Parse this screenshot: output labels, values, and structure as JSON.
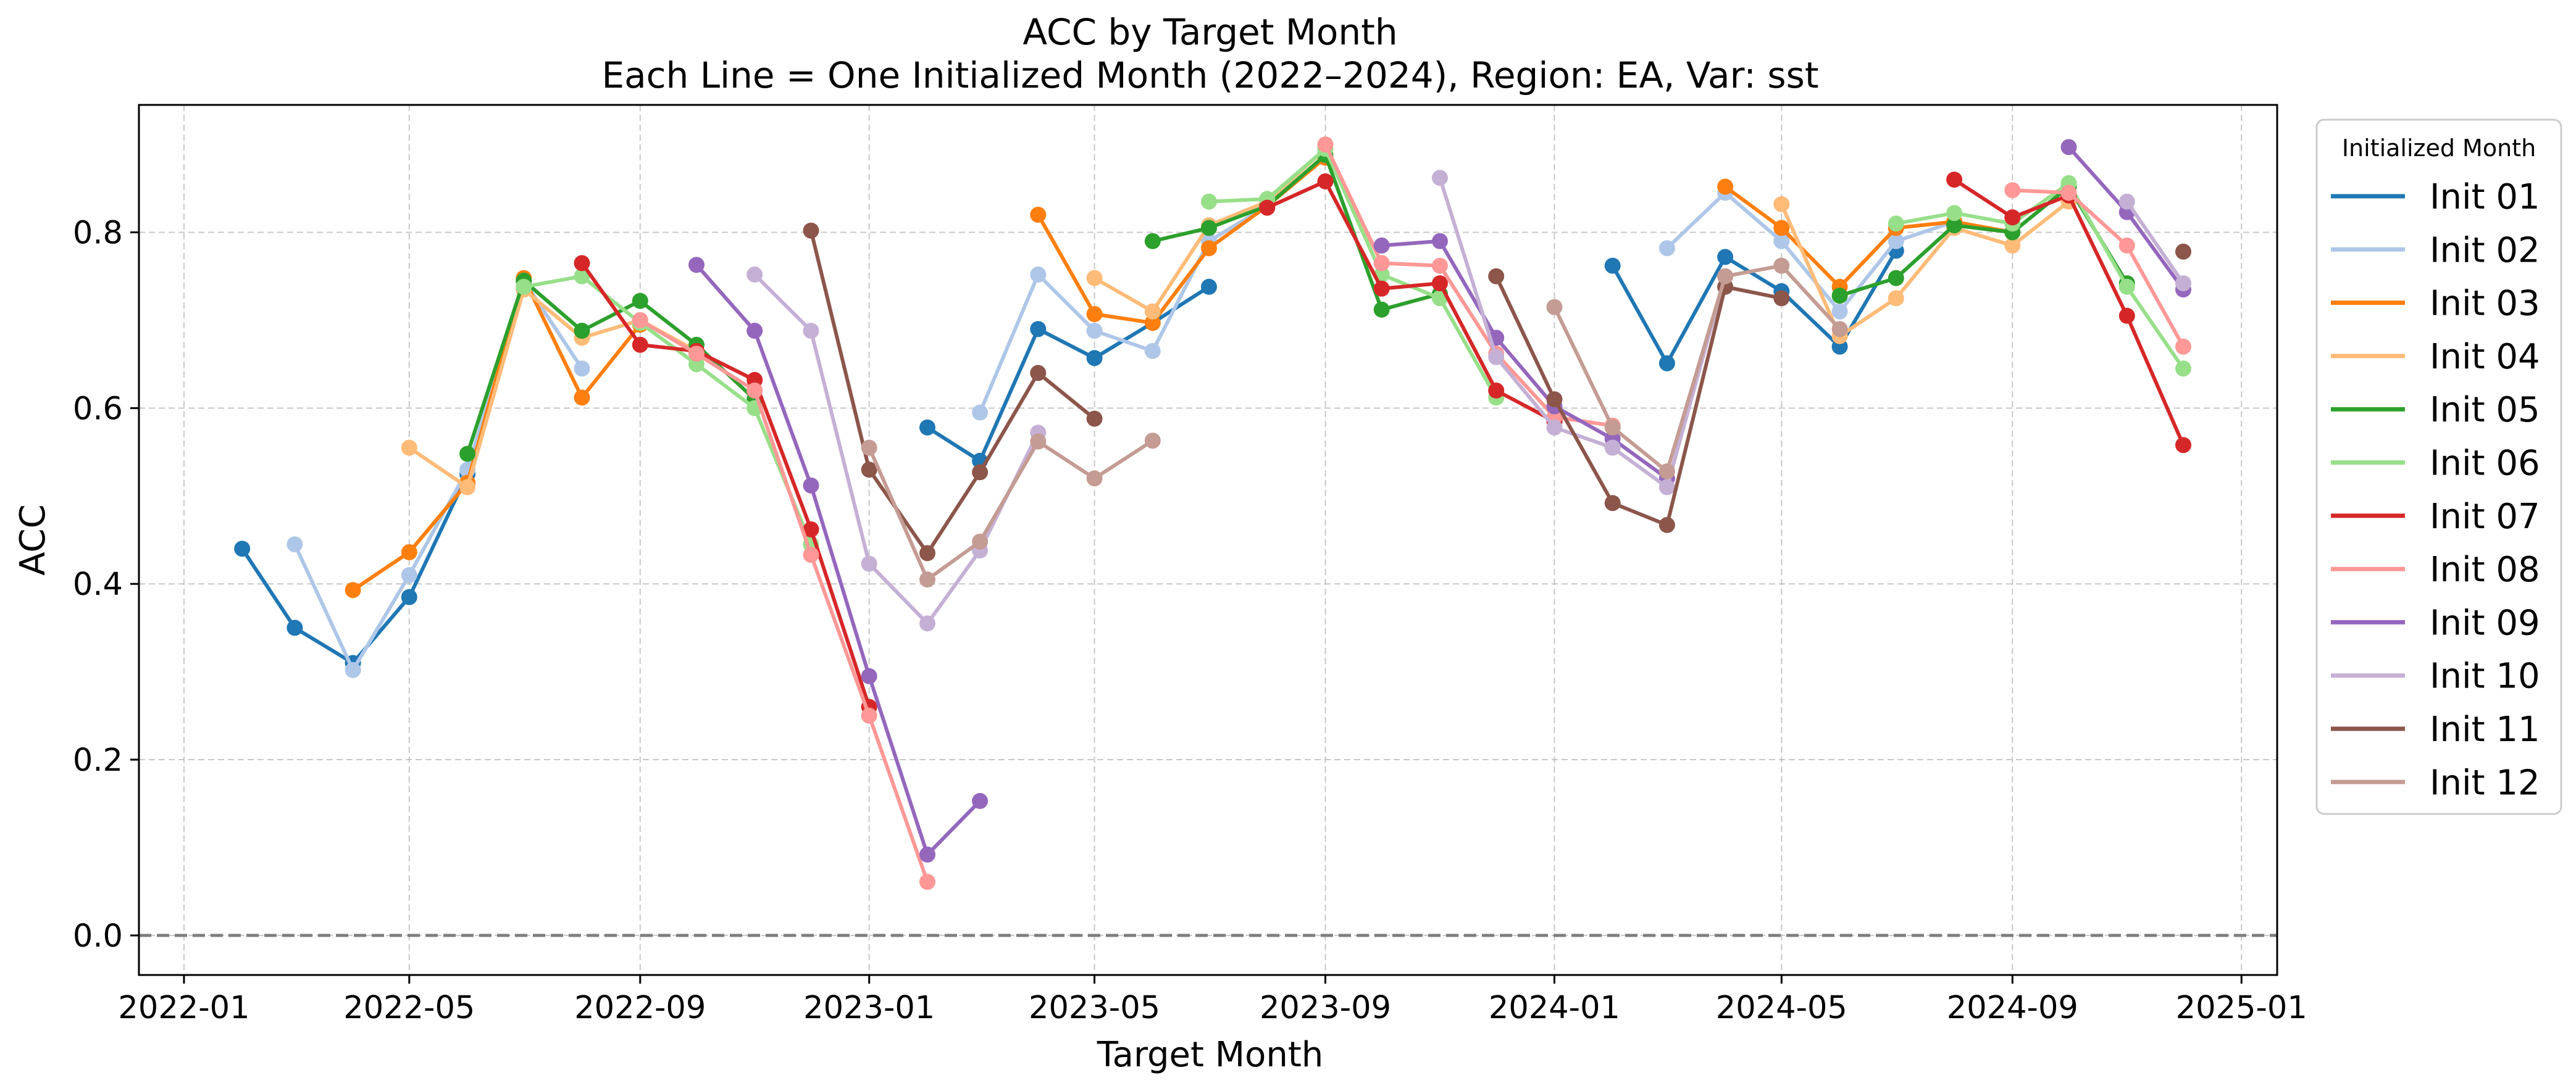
{
  "chart_data": {
    "type": "line",
    "title": "ACC by Target Month",
    "subtitle": "Each Line = One Initialized Month (2022–2024), Region: EA, Var: sst",
    "xlabel": "Target Month",
    "ylabel": "ACC",
    "xlim": [
      "2021-12-08",
      "2025-01-20"
    ],
    "ylim": [
      -0.045,
      0.945
    ],
    "x_ticks": [
      "2022-01",
      "2022-05",
      "2022-09",
      "2023-01",
      "2023-05",
      "2023-09",
      "2024-01",
      "2024-05",
      "2024-09",
      "2025-01"
    ],
    "y_ticks": [
      0.0,
      0.2,
      0.4,
      0.6,
      0.8
    ],
    "y_tick_labels": [
      "0.0",
      "0.2",
      "0.4",
      "0.6",
      "0.8"
    ],
    "grid": true,
    "reference_line": {
      "y": 0.0,
      "style": "dashed",
      "color": "#7f7f7f"
    },
    "legend": {
      "title": "Initialized Month",
      "placement": "outside-right"
    },
    "series": [
      {
        "name": "Init 01",
        "color": "#1f77b4",
        "segments": [
          {
            "x": [
              "2022-02",
              "2022-03",
              "2022-04",
              "2022-05",
              "2022-06",
              "2022-07"
            ],
            "y": [
              0.44,
              0.35,
              0.31,
              0.385,
              0.525,
              0.735
            ]
          },
          {
            "x": [
              "2023-02",
              "2023-03",
              "2023-04",
              "2023-05",
              "2023-06",
              "2023-07"
            ],
            "y": [
              0.578,
              0.54,
              0.69,
              0.657,
              0.697,
              0.738
            ]
          },
          {
            "x": [
              "2024-02",
              "2024-03",
              "2024-04",
              "2024-05",
              "2024-06",
              "2024-07"
            ],
            "y": [
              0.762,
              0.651,
              0.772,
              0.733,
              0.67,
              0.779
            ]
          }
        ]
      },
      {
        "name": "Init 02",
        "color": "#aec7e8",
        "segments": [
          {
            "x": [
              "2022-03",
              "2022-04",
              "2022-05",
              "2022-06",
              "2022-07",
              "2022-08"
            ],
            "y": [
              0.445,
              0.302,
              0.41,
              0.53,
              0.745,
              0.645
            ]
          },
          {
            "x": [
              "2023-03",
              "2023-04",
              "2023-05",
              "2023-06",
              "2023-07",
              "2023-08"
            ],
            "y": [
              0.595,
              0.752,
              0.688,
              0.665,
              0.79,
              0.83
            ]
          },
          {
            "x": [
              "2024-03",
              "2024-04",
              "2024-05",
              "2024-06",
              "2024-07",
              "2024-08"
            ],
            "y": [
              0.782,
              0.845,
              0.79,
              0.71,
              0.79,
              0.812
            ]
          }
        ]
      },
      {
        "name": "Init 03",
        "color": "#ff7f0e",
        "segments": [
          {
            "x": [
              "2022-04",
              "2022-05",
              "2022-06",
              "2022-07",
              "2022-08",
              "2022-09"
            ],
            "y": [
              0.393,
              0.436,
              0.515,
              0.748,
              0.612,
              0.695
            ]
          },
          {
            "x": [
              "2023-04",
              "2023-05",
              "2023-06",
              "2023-07",
              "2023-08",
              "2023-09"
            ],
            "y": [
              0.82,
              0.707,
              0.697,
              0.782,
              0.83,
              0.885
            ]
          },
          {
            "x": [
              "2024-04",
              "2024-05",
              "2024-06",
              "2024-07",
              "2024-08",
              "2024-09"
            ],
            "y": [
              0.852,
              0.805,
              0.738,
              0.805,
              0.812,
              0.8
            ]
          }
        ]
      },
      {
        "name": "Init 04",
        "color": "#ffbb78",
        "segments": [
          {
            "x": [
              "2022-05",
              "2022-06",
              "2022-07",
              "2022-08",
              "2022-09",
              "2022-10"
            ],
            "y": [
              0.555,
              0.51,
              0.735,
              0.68,
              0.7,
              0.665
            ]
          },
          {
            "x": [
              "2023-05",
              "2023-06",
              "2023-07",
              "2023-08",
              "2023-09",
              "2023-10"
            ],
            "y": [
              0.748,
              0.71,
              0.808,
              0.835,
              0.895,
              0.765
            ]
          },
          {
            "x": [
              "2024-05",
              "2024-06",
              "2024-07",
              "2024-08",
              "2024-09",
              "2024-10"
            ],
            "y": [
              0.832,
              0.682,
              0.725,
              0.805,
              0.785,
              0.835
            ]
          }
        ]
      },
      {
        "name": "Init 05",
        "color": "#2ca02c",
        "segments": [
          {
            "x": [
              "2022-06",
              "2022-07",
              "2022-08",
              "2022-09",
              "2022-10",
              "2022-11"
            ],
            "y": [
              0.548,
              0.745,
              0.688,
              0.722,
              0.672,
              0.61
            ]
          },
          {
            "x": [
              "2023-06",
              "2023-07",
              "2023-08",
              "2023-09",
              "2023-10",
              "2023-11"
            ],
            "y": [
              0.79,
              0.805,
              0.83,
              0.888,
              0.712,
              0.73
            ]
          },
          {
            "x": [
              "2024-06",
              "2024-07",
              "2024-08",
              "2024-09",
              "2024-10",
              "2024-11"
            ],
            "y": [
              0.728,
              0.748,
              0.808,
              0.8,
              0.852,
              0.742
            ]
          }
        ]
      },
      {
        "name": "Init 06",
        "color": "#98df8a",
        "segments": [
          {
            "x": [
              "2022-07",
              "2022-08",
              "2022-09",
              "2022-10",
              "2022-11",
              "2022-12"
            ],
            "y": [
              0.738,
              0.75,
              0.697,
              0.65,
              0.6,
              0.445
            ]
          },
          {
            "x": [
              "2023-07",
              "2023-08",
              "2023-09",
              "2023-10",
              "2023-11",
              "2023-12"
            ],
            "y": [
              0.835,
              0.838,
              0.895,
              0.752,
              0.725,
              0.612
            ]
          },
          {
            "x": [
              "2024-07",
              "2024-08",
              "2024-09",
              "2024-10",
              "2024-11",
              "2024-12"
            ],
            "y": [
              0.81,
              0.822,
              0.81,
              0.856,
              0.738,
              0.645
            ]
          }
        ]
      },
      {
        "name": "Init 07",
        "color": "#d62728",
        "segments": [
          {
            "x": [
              "2022-08",
              "2022-09",
              "2022-10",
              "2022-11",
              "2022-12",
              "2023-01"
            ],
            "y": [
              0.765,
              0.672,
              0.665,
              0.632,
              0.462,
              0.26
            ]
          },
          {
            "x": [
              "2023-08",
              "2023-09",
              "2023-10",
              "2023-11",
              "2023-12",
              "2024-01"
            ],
            "y": [
              0.828,
              0.858,
              0.736,
              0.742,
              0.62,
              0.585
            ]
          },
          {
            "x": [
              "2024-08",
              "2024-09",
              "2024-10",
              "2024-11",
              "2024-12"
            ],
            "y": [
              0.86,
              0.817,
              0.842,
              0.705,
              0.558
            ]
          }
        ]
      },
      {
        "name": "Init 08",
        "color": "#ff9896",
        "segments": [
          {
            "x": [
              "2022-09",
              "2022-10",
              "2022-11",
              "2022-12",
              "2023-01",
              "2023-02"
            ],
            "y": [
              0.7,
              0.662,
              0.62,
              0.433,
              0.25,
              0.061
            ]
          },
          {
            "x": [
              "2023-09",
              "2023-10",
              "2023-11",
              "2023-12",
              "2024-01",
              "2024-02"
            ],
            "y": [
              0.9,
              0.765,
              0.762,
              0.662,
              0.59,
              0.58
            ]
          },
          {
            "x": [
              "2024-09",
              "2024-10",
              "2024-11",
              "2024-12"
            ],
            "y": [
              0.848,
              0.845,
              0.785,
              0.67
            ]
          }
        ]
      },
      {
        "name": "Init 09",
        "color": "#9467bd",
        "segments": [
          {
            "x": [
              "2022-10",
              "2022-11",
              "2022-12",
              "2023-01",
              "2023-02",
              "2023-03"
            ],
            "y": [
              0.763,
              0.688,
              0.512,
              0.295,
              0.092,
              0.153
            ]
          },
          {
            "x": [
              "2023-10",
              "2023-11",
              "2023-12",
              "2024-01",
              "2024-02",
              "2024-03"
            ],
            "y": [
              0.785,
              0.79,
              0.68,
              0.602,
              0.565,
              0.52
            ]
          },
          {
            "x": [
              "2024-10",
              "2024-11",
              "2024-12"
            ],
            "y": [
              0.897,
              0.823,
              0.735
            ]
          }
        ]
      },
      {
        "name": "Init 10",
        "color": "#c5b0d5",
        "segments": [
          {
            "x": [
              "2022-11",
              "2022-12",
              "2023-01",
              "2023-02",
              "2023-03",
              "2023-04"
            ],
            "y": [
              0.752,
              0.688,
              0.423,
              0.355,
              0.438,
              0.572
            ]
          },
          {
            "x": [
              "2023-11",
              "2023-12",
              "2024-01",
              "2024-02",
              "2024-03",
              "2024-04"
            ],
            "y": [
              0.862,
              0.658,
              0.578,
              0.555,
              0.51,
              0.75
            ]
          },
          {
            "x": [
              "2024-11",
              "2024-12"
            ],
            "y": [
              0.835,
              0.742
            ]
          }
        ]
      },
      {
        "name": "Init 11",
        "color": "#8c564b",
        "segments": [
          {
            "x": [
              "2022-12",
              "2023-01",
              "2023-02",
              "2023-03",
              "2023-04",
              "2023-05"
            ],
            "y": [
              0.802,
              0.53,
              0.435,
              0.527,
              0.64,
              0.588
            ]
          },
          {
            "x": [
              "2023-12",
              "2024-01",
              "2024-02",
              "2024-03",
              "2024-04",
              "2024-05"
            ],
            "y": [
              0.75,
              0.61,
              0.492,
              0.467,
              0.738,
              0.725
            ]
          },
          {
            "x": [
              "2024-12"
            ],
            "y": [
              0.778
            ]
          }
        ]
      },
      {
        "name": "Init 12",
        "color": "#c49c94",
        "segments": [
          {
            "x": [
              "2023-01",
              "2023-02",
              "2023-03",
              "2023-04",
              "2023-05",
              "2023-06"
            ],
            "y": [
              0.555,
              0.405,
              0.448,
              0.562,
              0.52,
              0.563
            ]
          },
          {
            "x": [
              "2024-01",
              "2024-02",
              "2024-03",
              "2024-04",
              "2024-05",
              "2024-06"
            ],
            "y": [
              0.715,
              0.578,
              0.528,
              0.75,
              0.762,
              0.69
            ]
          }
        ]
      }
    ]
  }
}
